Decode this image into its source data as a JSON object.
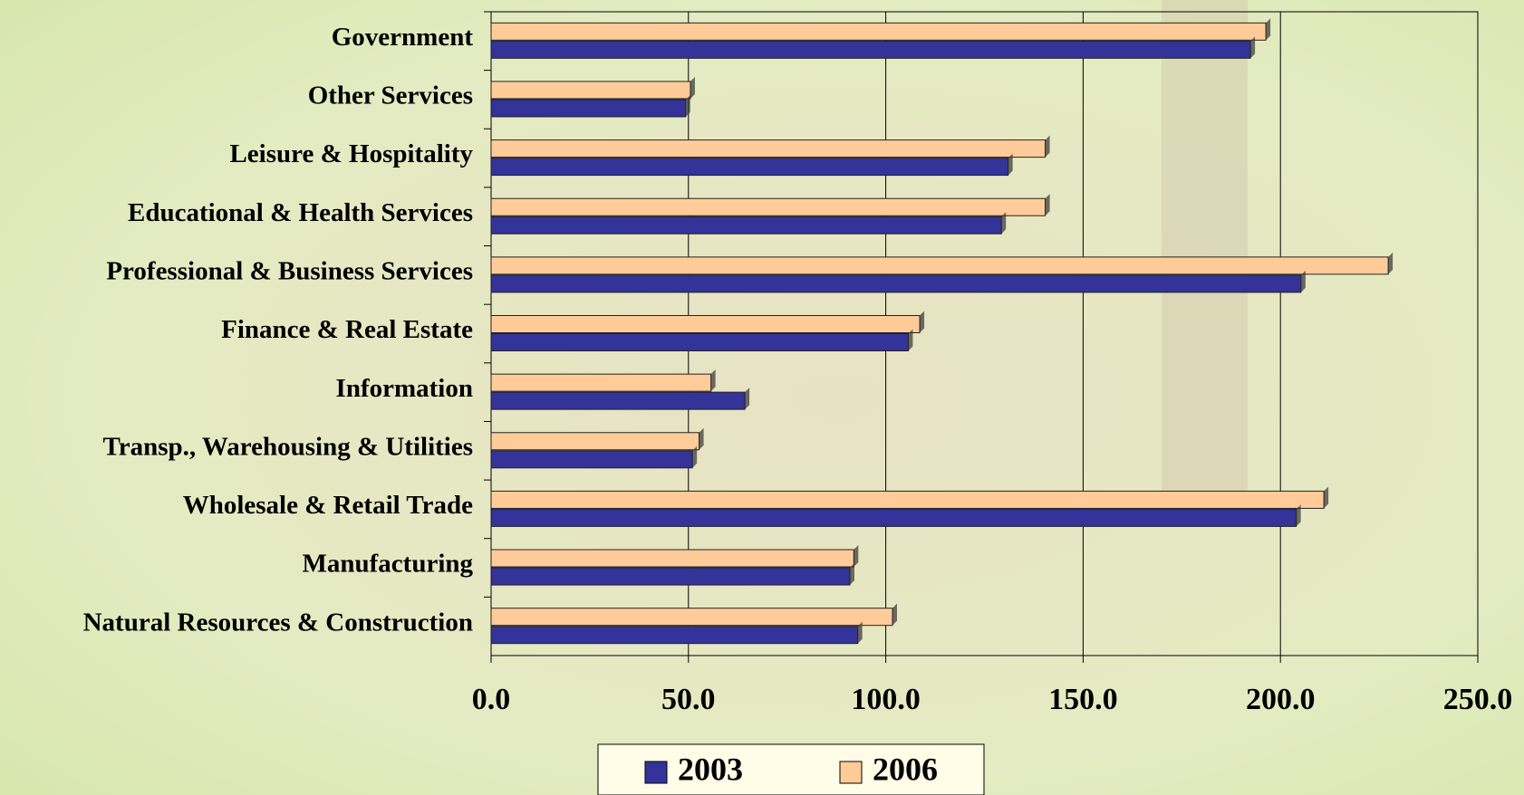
{
  "chart_data": {
    "type": "hbar",
    "categories": [
      "Government",
      "Other Services",
      "Leisure & Hospitality",
      "Educational & Health Services",
      "Professional & Business Services",
      "Finance & Real Estate",
      "Information",
      "Transp., Warehousing & Utilities",
      "Wholesale & Retail Trade",
      "Manufacturing",
      "Natural Resources & Construction"
    ],
    "series": [
      {
        "name": "2003",
        "color": "#333399",
        "values": [
          192.4,
          49.3,
          131,
          129.3,
          205.2,
          105.7,
          64.3,
          51,
          204,
          90.9,
          92.9
        ]
      },
      {
        "name": "2006",
        "color": "#ffcc99",
        "values": [
          196.3,
          50.5,
          140.4,
          140.4,
          227.3,
          108.6,
          55.7,
          52.7,
          211,
          91.9,
          101.7
        ]
      }
    ],
    "xlim": [
      0,
      250
    ],
    "xticks": [
      {
        "value": 0,
        "label": "0.0"
      },
      {
        "value": 50,
        "label": "50.0"
      },
      {
        "value": 100,
        "label": "100.0"
      },
      {
        "value": 150,
        "label": "150.0"
      },
      {
        "value": 200,
        "label": "200.0"
      },
      {
        "value": 250,
        "label": "250.0"
      }
    ],
    "grid": true,
    "legend": "bottom"
  }
}
